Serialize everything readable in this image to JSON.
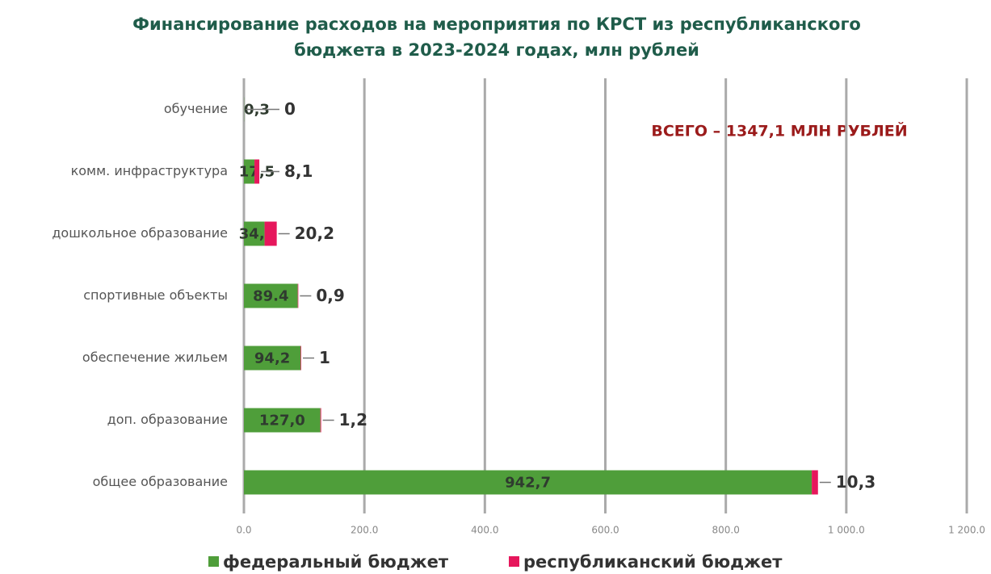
{
  "chart_data": {
    "type": "stacked_bar_horizontal",
    "title": "Финансирование расходов на мероприятия по КРСТ из республиканского бюджета в 2023-2024 годах, млн рублей",
    "annotation": "ВСЕГО – 1347,1 МЛН РУБЛЕЙ",
    "categories": [
      "обучение",
      "комм. инфраструктура",
      "дошкольное образование",
      "спортивные объекты",
      "обеспечение жильем",
      "доп. образование",
      "общее образование"
    ],
    "series": [
      {
        "name": "федеральный бюджет",
        "color": "#4f9e3a",
        "values": [
          0.3,
          17.5,
          34.3,
          89.4,
          94.2,
          127.0,
          942.7
        ],
        "value_labels": [
          "0,3",
          "17,5",
          "34,3",
          "89.4",
          "94,2",
          "127,0",
          "942,7"
        ]
      },
      {
        "name": "республиканский бюджет",
        "color": "#e6175c",
        "values": [
          0,
          8.1,
          20.2,
          0.9,
          1,
          1.2,
          10.3
        ],
        "value_labels": [
          "0",
          "8,1",
          "20,2",
          "0,9",
          "1",
          "1,2",
          "10,3"
        ]
      }
    ],
    "xlim": [
      0,
      1200
    ],
    "xticks": [
      {
        "value": 0,
        "label": "0.0"
      },
      {
        "value": 200,
        "label": "200.0"
      },
      {
        "value": 400,
        "label": "400.0"
      },
      {
        "value": 600,
        "label": "600.0"
      },
      {
        "value": 800,
        "label": "800.0"
      },
      {
        "value": 1000,
        "label": "1 000.0"
      },
      {
        "value": 1200,
        "label": "1 200.0"
      }
    ],
    "grid": true
  }
}
